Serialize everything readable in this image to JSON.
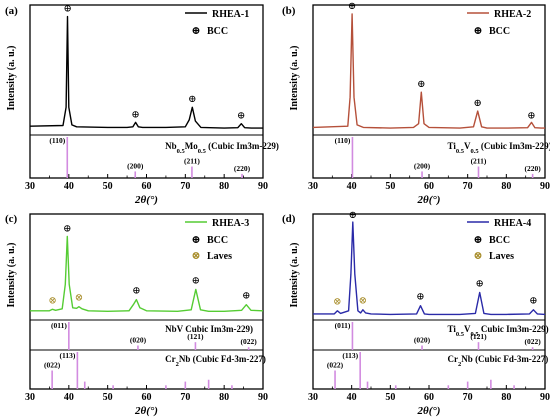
{
  "chart_data": [
    {
      "type": "line",
      "panel_label": "(a)",
      "xlabel": "2θ(°)",
      "ylabel": "Intensity (a. u.)",
      "xlim": [
        30,
        90
      ],
      "xticks": [
        "30",
        "40",
        "50",
        "60",
        "70",
        "80",
        "90"
      ],
      "series": [
        {
          "name": "RHEA-1",
          "color": "#000000",
          "x": [
            30,
            38.5,
            39.3,
            39.65,
            40.0,
            40.8,
            42,
            50,
            55,
            56.5,
            57.2,
            57.9,
            59,
            65,
            70,
            71.0,
            71.8,
            72.6,
            74,
            80,
            83.5,
            84.4,
            85.3,
            87,
            90
          ],
          "y": [
            7,
            7.5,
            22,
            94,
            22,
            8,
            6.5,
            6,
            6,
            6.5,
            10,
            6.5,
            6,
            6,
            6.5,
            12,
            22,
            11,
            6,
            5.5,
            5.8,
            9,
            5.8,
            5.5,
            5.5
          ]
        }
      ],
      "peak_markers": [
        {
          "label": "⊕",
          "x": 39.7,
          "y": 98
        },
        {
          "label": "⊕",
          "x": 57.2,
          "y": 14
        },
        {
          "label": "⊕",
          "x": 71.8,
          "y": 26
        },
        {
          "label": "⊕",
          "x": 84.4,
          "y": 13
        }
      ],
      "legend_markers": [
        {
          "symbol": "⊕",
          "label": "BCC",
          "color": "#000000"
        }
      ],
      "references": [
        {
          "name": "Nb",
          "sub1": "0.5",
          "mid": "Mo",
          "sub2": "0.5",
          "suffix": " (Cubic Im3m-229)",
          "color": "#d28be0",
          "sticks": [
            {
              "x": 39.6,
              "h": 1.0,
              "hkl": "(110)"
            },
            {
              "x": 57.1,
              "h": 0.16,
              "hkl": "(200)"
            },
            {
              "x": 71.7,
              "h": 0.28,
              "hkl": "(211)"
            },
            {
              "x": 84.6,
              "h": 0.1,
              "hkl": "(220)"
            }
          ]
        }
      ]
    },
    {
      "type": "line",
      "panel_label": "(b)",
      "xlabel": "2θ(°)",
      "ylabel": "Intensity (a. u.)",
      "xlim": [
        30,
        90
      ],
      "xticks": [
        "30",
        "40",
        "50",
        "60",
        "70",
        "80",
        "90"
      ],
      "series": [
        {
          "name": "RHEA-2",
          "color": "#b5503a",
          "x": [
            30,
            39.0,
            39.6,
            40.1,
            40.6,
            41.4,
            43,
            50,
            56,
            57.3,
            58.0,
            58.7,
            60,
            68,
            71.5,
            72.6,
            73.6,
            75,
            80,
            85.5,
            86.5,
            87.4,
            89,
            90
          ],
          "y": [
            6,
            7,
            30,
            96,
            30,
            8,
            6,
            5.5,
            6,
            9,
            34,
            9,
            6,
            5.5,
            6.5,
            19,
            6.5,
            5.5,
            5.5,
            5.8,
            10,
            5.8,
            5.5,
            5.5
          ]
        }
      ],
      "peak_markers": [
        {
          "label": "⊕",
          "x": 40.1,
          "y": 100
        },
        {
          "label": "⊕",
          "x": 58.0,
          "y": 38
        },
        {
          "label": "⊕",
          "x": 72.6,
          "y": 23
        },
        {
          "label": "⊕",
          "x": 86.5,
          "y": 13
        }
      ],
      "legend_markers": [
        {
          "symbol": "⊕",
          "label": "BCC",
          "color": "#000000"
        }
      ],
      "references": [
        {
          "name": "Ti",
          "sub1": "0.5",
          "mid": "V",
          "sub2": "0.5",
          "suffix": " (Cubic Im3m-229)",
          "color": "#d28be0",
          "sticks": [
            {
              "x": 40.2,
              "h": 1.0,
              "hkl": "(110)"
            },
            {
              "x": 58.2,
              "h": 0.16,
              "hkl": "(200)"
            },
            {
              "x": 72.8,
              "h": 0.28,
              "hkl": "(211)"
            },
            {
              "x": 86.8,
              "h": 0.1,
              "hkl": "(220)"
            }
          ]
        }
      ]
    },
    {
      "type": "line",
      "panel_label": "(c)",
      "xlabel": "2θ(°)",
      "ylabel": "Intensity (a. u.)",
      "xlim": [
        30,
        90
      ],
      "xticks": [
        "30",
        "40",
        "50",
        "60",
        "70",
        "80",
        "90"
      ],
      "series": [
        {
          "name": "RHEA-3",
          "color": "#55cc33",
          "x": [
            30,
            35.0,
            35.8,
            36.6,
            38.3,
            39.1,
            39.6,
            40.1,
            41.0,
            42.0,
            42.6,
            43.4,
            45,
            50,
            55.5,
            56.6,
            57.4,
            58.3,
            60,
            68,
            71.5,
            72.7,
            73.9,
            76,
            80,
            84.5,
            85.7,
            86.9,
            90
          ],
          "y": [
            9,
            9,
            10.5,
            9.5,
            11,
            35,
            82,
            35,
            12,
            11.5,
            13,
            11,
            9,
            8.5,
            9,
            15,
            20,
            12,
            9,
            8.5,
            10,
            30,
            10,
            8.5,
            8.5,
            9.5,
            15,
            9.5,
            9
          ]
        }
      ],
      "peak_markers": [
        {
          "label": "⊕",
          "x": 39.6,
          "y": 87
        },
        {
          "label": "⊕",
          "x": 57.4,
          "y": 26
        },
        {
          "label": "⊕",
          "x": 72.7,
          "y": 36
        },
        {
          "label": "⊕",
          "x": 85.7,
          "y": 21
        }
      ],
      "laves_markers": [
        {
          "label": "⊗",
          "x": 35.8,
          "y": 16
        },
        {
          "label": "⊗",
          "x": 42.6,
          "y": 19
        }
      ],
      "legend_markers": [
        {
          "symbol": "⊕",
          "label": "BCC",
          "color": "#000000"
        },
        {
          "symbol": "⊗",
          "label": "Laves",
          "color": "#a88d2a"
        }
      ],
      "references": [
        {
          "name": "NbV",
          "sub1": "",
          "mid": "",
          "sub2": "",
          "suffix": " Cubic Im3m-229)",
          "color": "#d28be0",
          "sticks": [
            {
              "x": 40.0,
              "h": 1.0,
              "hkl": "(011)"
            },
            {
              "x": 57.8,
              "h": 0.16,
              "hkl": "(020)"
            },
            {
              "x": 72.6,
              "h": 0.28,
              "hkl": "(121)"
            },
            {
              "x": 86.3,
              "h": 0.1,
              "hkl": "(022)"
            }
          ]
        },
        {
          "name": "Cr",
          "sub1": "2",
          "mid": "Nb",
          "sub2": "",
          "suffix": " (Cubic Fd-3m-227)",
          "color": "#d28be0",
          "sticks": [
            {
              "x": 35.7,
              "h": 0.5,
              "hkl": "(022)"
            },
            {
              "x": 42.2,
              "h": 1.0,
              "hkl": "(113)"
            },
            {
              "x": 44.1,
              "h": 0.2,
              "hkl": ""
            },
            {
              "x": 51.4,
              "h": 0.1,
              "hkl": ""
            },
            {
              "x": 65.0,
              "h": 0.1,
              "hkl": ""
            },
            {
              "x": 70.0,
              "h": 0.2,
              "hkl": ""
            },
            {
              "x": 76.0,
              "h": 0.25,
              "hkl": ""
            },
            {
              "x": 82.0,
              "h": 0.1,
              "hkl": ""
            }
          ]
        }
      ]
    },
    {
      "type": "line",
      "panel_label": "(d)",
      "xlabel": "2θ(°)",
      "ylabel": "Intensity (a. u.)",
      "xlim": [
        30,
        90
      ],
      "xticks": [
        "30",
        "40",
        "50",
        "60",
        "70",
        "80",
        "90"
      ],
      "series": [
        {
          "name": "RHEA-4",
          "color": "#2a2aa8",
          "x": [
            30,
            35.5,
            36.3,
            37.1,
            39.2,
            39.8,
            40.3,
            40.8,
            41.6,
            42.3,
            42.9,
            43.6,
            45,
            50,
            56.8,
            57.8,
            58.8,
            60,
            68,
            72.0,
            73.1,
            74.2,
            76,
            80,
            86.0,
            87.0,
            88.0,
            90
          ],
          "y": [
            6,
            6,
            9,
            6.5,
            9,
            45,
            96,
            45,
            9,
            7,
            10,
            7,
            6,
            5.5,
            6,
            14,
            6,
            5.5,
            5.5,
            6.5,
            27,
            6.5,
            5.5,
            5.5,
            6,
            10,
            6,
            5.5
          ]
        }
      ],
      "peak_markers": [
        {
          "label": "⊕",
          "x": 40.3,
          "y": 100
        },
        {
          "label": "⊕",
          "x": 57.8,
          "y": 20
        },
        {
          "label": "⊕",
          "x": 73.1,
          "y": 33
        },
        {
          "label": "⊕",
          "x": 87.0,
          "y": 16
        }
      ],
      "laves_markers": [
        {
          "label": "⊗",
          "x": 36.3,
          "y": 15
        },
        {
          "label": "⊗",
          "x": 42.9,
          "y": 16
        }
      ],
      "legend_markers": [
        {
          "symbol": "⊕",
          "label": "BCC",
          "color": "#000000"
        },
        {
          "symbol": "⊗",
          "label": "Laves",
          "color": "#a88d2a"
        }
      ],
      "references": [
        {
          "name": "Ti",
          "sub1": "0.5",
          "mid": "V",
          "sub2": "0.5",
          "suffix": "  Cubic Im3m-229)",
          "color": "#d28be0",
          "sticks": [
            {
              "x": 40.2,
              "h": 1.0,
              "hkl": "(011)"
            },
            {
              "x": 58.2,
              "h": 0.16,
              "hkl": "(020)"
            },
            {
              "x": 72.8,
              "h": 0.28,
              "hkl": "(121)"
            },
            {
              "x": 86.8,
              "h": 0.1,
              "hkl": "(022)"
            }
          ]
        },
        {
          "name": "Cr",
          "sub1": "2",
          "mid": "Nb",
          "sub2": "",
          "suffix": " (Cubic Fd-3m-227)",
          "color": "#d28be0",
          "sticks": [
            {
              "x": 35.7,
              "h": 0.5,
              "hkl": "(022)"
            },
            {
              "x": 42.2,
              "h": 1.0,
              "hkl": "(113)"
            },
            {
              "x": 44.1,
              "h": 0.2,
              "hkl": ""
            },
            {
              "x": 51.4,
              "h": 0.1,
              "hkl": ""
            },
            {
              "x": 65.0,
              "h": 0.1,
              "hkl": ""
            },
            {
              "x": 70.0,
              "h": 0.2,
              "hkl": ""
            },
            {
              "x": 76.0,
              "h": 0.25,
              "hkl": ""
            },
            {
              "x": 82.0,
              "h": 0.1,
              "hkl": ""
            }
          ]
        }
      ]
    }
  ]
}
